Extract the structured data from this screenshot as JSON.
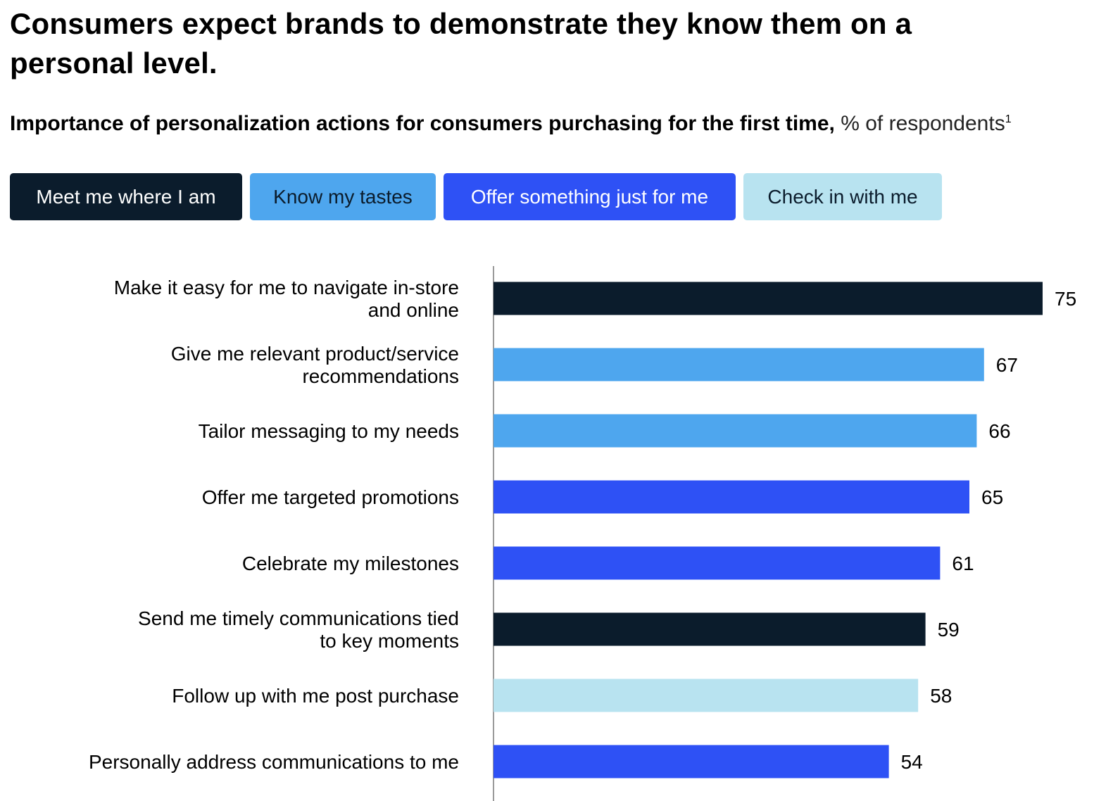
{
  "title": "Consumers expect brands to demonstrate they know them on a personal level.",
  "subtitle": {
    "bold": "Importance of personalization actions for consumers purchasing for the first time,",
    "unit": "% of respondents",
    "footnote_mark": "1"
  },
  "legend": [
    {
      "label": "Meet me where I am",
      "color": "#0b1c2c",
      "text_color": "#ffffff"
    },
    {
      "label": "Know my tastes",
      "color": "#4ea6ee",
      "text_color": "#0b1c2c"
    },
    {
      "label": "Offer something just for me",
      "color": "#2e51f5",
      "text_color": "#ffffff"
    },
    {
      "label": "Check in with me",
      "color": "#b8e3f0",
      "text_color": "#0b1c2c"
    }
  ],
  "chart_data": {
    "type": "bar",
    "orientation": "horizontal",
    "categories": [
      [
        "Make it easy for me to navigate in-store",
        "and online"
      ],
      [
        "Give me relevant product/service",
        "recommendations"
      ],
      [
        "Tailor messaging to my needs"
      ],
      [
        "Offer me targeted promotions"
      ],
      [
        "Celebrate my milestones"
      ],
      [
        "Send me timely communications tied",
        "to key moments"
      ],
      [
        "Follow up with me post purchase"
      ],
      [
        "Personally address communications to me"
      ]
    ],
    "values": [
      75,
      67,
      66,
      65,
      61,
      59,
      58,
      54
    ],
    "groups": [
      "Meet me where I am",
      "Know my tastes",
      "Know my tastes",
      "Offer something just for me",
      "Offer something just for me",
      "Meet me where I am",
      "Check in with me",
      "Offer something just for me"
    ],
    "xlim": [
      0,
      75
    ],
    "data_labels": [
      "75",
      "67",
      "66",
      "65",
      "61",
      "59",
      "58",
      "54"
    ]
  }
}
